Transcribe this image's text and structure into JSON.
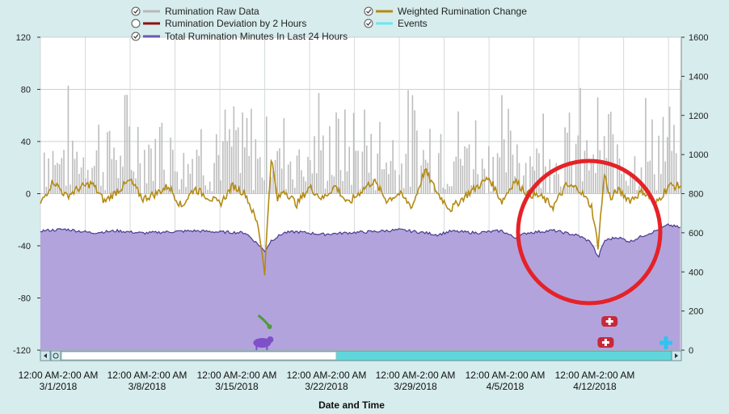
{
  "chart_data": {
    "type": "line",
    "xlabel": "Date and Time",
    "legend": {
      "placement": "top",
      "items": [
        {
          "label": "Rumination Raw Data",
          "color": "#b9b9b9",
          "checked": true
        },
        {
          "label": "Weighted Rumination Change",
          "color": "#b48a12",
          "checked": true
        },
        {
          "label": "Rumination Deviation by 2 Hours",
          "color": "#8b1010",
          "checked": false
        },
        {
          "label": "Events",
          "color": "#66e8f0",
          "checked": true
        },
        {
          "label": "Total Rumination Minutes In Last 24 Hours",
          "color": "#6a57b3",
          "checked": true
        }
      ]
    },
    "y_left": {
      "min": -120,
      "max": 120,
      "ticks": [
        "120",
        "80",
        "40",
        "0",
        "-40",
        "-80",
        "-120"
      ]
    },
    "y_right": {
      "min": 0,
      "max": 1600,
      "ticks": [
        "1600",
        "1400",
        "1200",
        "1000",
        "800",
        "600",
        "400",
        "200",
        "0"
      ]
    },
    "x_ticks": [
      {
        "top": "12:00 AM-2:00 AM",
        "bottom": "3/1/2018"
      },
      {
        "top": "12:00 AM-2:00 AM",
        "bottom": "3/8/2018"
      },
      {
        "top": "12:00 AM-2:00 AM",
        "bottom": "3/15/2018"
      },
      {
        "top": "12:00 AM-2:00 AM",
        "bottom": "3/22/2018"
      },
      {
        "top": "12:00 AM-2:00 AM",
        "bottom": "3/29/2018"
      },
      {
        "top": "12:00 AM-2:00 AM",
        "bottom": "4/5/2018"
      },
      {
        "top": "12:00 AM-2:00 AM",
        "bottom": "4/12/2018"
      }
    ],
    "x_range_days": [
      0,
      50
    ],
    "series": [
      {
        "name": "Total Rumination Minutes In Last 24 Hours",
        "axis": "right",
        "x": [
          0,
          2,
          4,
          6,
          8,
          10,
          12,
          14,
          16,
          17,
          17.5,
          18,
          19,
          20,
          22,
          24,
          26,
          28,
          30,
          31,
          32,
          34,
          36,
          37,
          38,
          40,
          42,
          43,
          43.5,
          44,
          45,
          46,
          47,
          48,
          49,
          50
        ],
        "values": [
          610,
          618,
          600,
          610,
          598,
          605,
          610,
          604,
          600,
          540,
          505,
          560,
          600,
          605,
          592,
          600,
          606,
          615,
          600,
          590,
          608,
          600,
          610,
          575,
          600,
          612,
          585,
          550,
          470,
          560,
          578,
          555,
          585,
          610,
          640,
          625
        ]
      },
      {
        "name": "Weighted Rumination Change",
        "axis": "left",
        "x": [
          0,
          1,
          2,
          3,
          4,
          5,
          6,
          7,
          8,
          9,
          10,
          11,
          12,
          13,
          14,
          15,
          16,
          17,
          17.5,
          18,
          18.5,
          19,
          20,
          21,
          22,
          23,
          24,
          25,
          26,
          27,
          28,
          29,
          30,
          31,
          32,
          33,
          34,
          35,
          36,
          37,
          38,
          39,
          40,
          41,
          42,
          43,
          43.5,
          44,
          44.5,
          45,
          46,
          47,
          48,
          49,
          50
        ],
        "values": [
          -8,
          10,
          -2,
          4,
          8,
          -6,
          2,
          10,
          -4,
          0,
          6,
          -10,
          4,
          -2,
          -8,
          6,
          0,
          -25,
          -60,
          28,
          -5,
          3,
          -8,
          5,
          -4,
          6,
          -8,
          2,
          10,
          -5,
          0,
          -10,
          18,
          0,
          -12,
          -3,
          5,
          12,
          -6,
          10,
          0,
          -2,
          -10,
          6,
          4,
          -10,
          -40,
          15,
          -5,
          3,
          -5,
          2,
          -8,
          6,
          6
        ]
      },
      {
        "name": "Rumination Raw Data",
        "axis": "left",
        "type": "bar",
        "typical_range": [
          0,
          90
        ]
      }
    ],
    "events": [
      {
        "day": 17.3,
        "icon": "calving-icon",
        "stack": 0,
        "color": "#7e50c9"
      },
      {
        "day": 17.5,
        "icon": "heat-icon",
        "stack": 1,
        "color": "#4f9a3a"
      },
      {
        "day": 44.1,
        "icon": "health-icon",
        "stack": 0,
        "color": "#c7293a"
      },
      {
        "day": 44.4,
        "icon": "health-icon",
        "stack": 1,
        "color": "#c7293a"
      },
      {
        "day": 48.8,
        "icon": "treatment-icon",
        "stack": 0,
        "color": "#2fc4ee"
      }
    ],
    "annotation": {
      "type": "ellipse",
      "color": "#e52228",
      "around": "dip near 4/12/2018"
    },
    "grid": true
  }
}
